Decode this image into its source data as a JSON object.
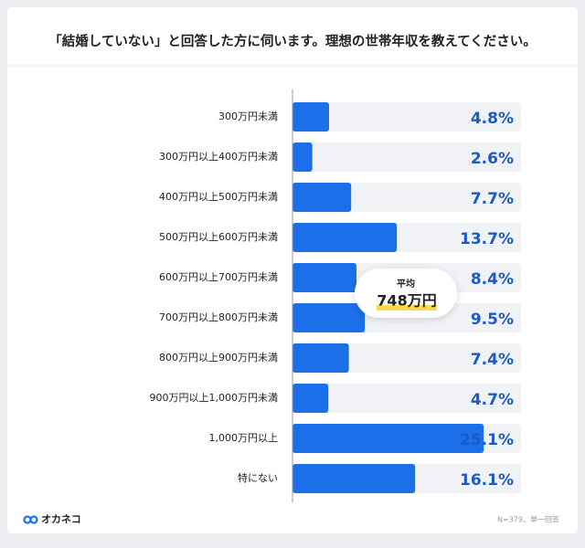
{
  "chart_data": {
    "type": "bar",
    "orientation": "horizontal",
    "title": "「結婚していない」と回答した方に伺います。理想の世帯年収を教えてください。",
    "categories": [
      "300万円未満",
      "300万円以上400万円未満",
      "400万円以上500万円未満",
      "500万円以上600万円未満",
      "600万円以上700万円未満",
      "700万円以上800万円未満",
      "800万円以上900万円未満",
      "900万円以上1,000万円未満",
      "1,000万円以上",
      "特にない"
    ],
    "values": [
      4.8,
      2.6,
      7.7,
      13.7,
      8.4,
      9.5,
      7.4,
      4.7,
      25.1,
      16.1
    ],
    "value_labels": [
      "4.8%",
      "2.6%",
      "7.7%",
      "13.7%",
      "8.4%",
      "9.5%",
      "7.4%",
      "4.7%",
      "25.1%",
      "16.1%"
    ],
    "color": "#1b6fe8",
    "label_color": "#1a5cc4",
    "xlim": [
      0,
      30
    ],
    "annotation": {
      "label": "平均",
      "value_label": "748万円"
    }
  },
  "footer": {
    "brand": "オカネコ",
    "note": "N=379、単一回答"
  }
}
